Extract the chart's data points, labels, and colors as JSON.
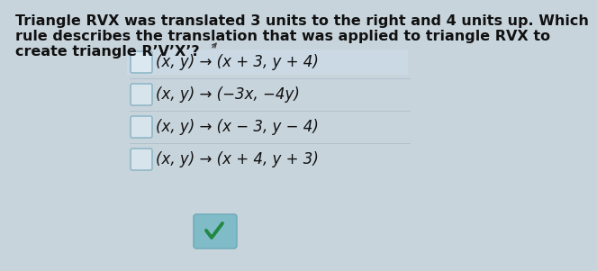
{
  "question_line1": "Triangle RVX was translated 3 units to the right and 4 units up. Which",
  "question_line2": "rule describes the translation that was applied to triangle RVX to",
  "question_line3": "create triangle R’V’X’?",
  "options": [
    "(x, y) → (x + 3, y + 4)",
    "(x, y) → (−3x, −4y)",
    "(x, y) → (x − 3, y − 4)",
    "(x, y) → (x + 4, y + 3)"
  ],
  "correct_index": 0,
  "bg_color": "#c8d4dc",
  "text_color": "#111111",
  "checkbox_border_color": "#90b8c8",
  "checkbox_fill_color": "#dce8f0",
  "highlight_bg": "#d8e8f0",
  "checkmark_bg": "#80bcc8",
  "checkmark_color": "#228844",
  "option_font_size": 12,
  "question_font_size": 11.5,
  "arrow_color": "#444444"
}
